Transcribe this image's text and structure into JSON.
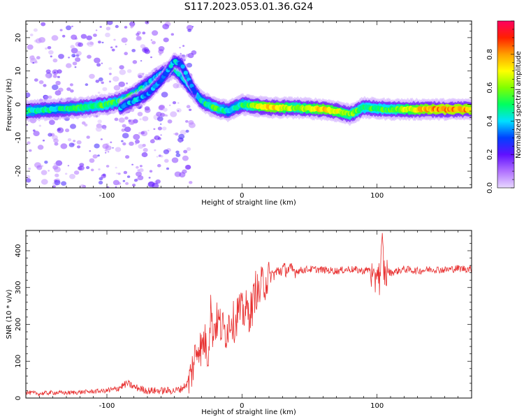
{
  "title": "S117.2023.053.01.36.G24",
  "chart_data": [
    {
      "type": "heatmap",
      "xlabel": "Height of straight line (km)",
      "ylabel": "Frequency (Hz)",
      "xlim": [
        -160,
        170
      ],
      "ylim": [
        -25,
        25
      ],
      "xticks": [
        -100,
        0,
        100
      ],
      "xtick_labels": [
        "-100",
        "0",
        "100"
      ],
      "yticks": [
        -20,
        -10,
        0,
        10,
        20
      ],
      "ytick_labels": [
        "-20",
        "-10",
        "0",
        "10",
        "20"
      ],
      "colorbar": {
        "label": "Normalized spectral amplitude",
        "range": [
          0,
          1
        ],
        "ticks": [
          0,
          0.2,
          0.4,
          0.6,
          0.8
        ],
        "tick_labels": [
          "0.0",
          "0.2",
          "0.4",
          "0.6",
          "0.8"
        ],
        "colors": [
          "#e8d8ff",
          "#b070ff",
          "#6010ff",
          "#0040ff",
          "#00e0ff",
          "#00ff60",
          "#80ff00",
          "#ffff00",
          "#ffa000",
          "#ff2000",
          "#ff0060"
        ]
      },
      "main_track": [
        {
          "x": -160,
          "f": -2,
          "a": 0.45
        },
        {
          "x": -140,
          "f": -1.5,
          "a": 0.4
        },
        {
          "x": -120,
          "f": -1,
          "a": 0.45
        },
        {
          "x": -100,
          "f": 0,
          "a": 0.5
        },
        {
          "x": -90,
          "f": 1,
          "a": 0.45
        },
        {
          "x": -80,
          "f": 3,
          "a": 0.45
        },
        {
          "x": -70,
          "f": 6,
          "a": 0.35
        },
        {
          "x": -60,
          "f": 9,
          "a": 0.35
        },
        {
          "x": -50,
          "f": 11,
          "a": 0.4
        },
        {
          "x": -40,
          "f": 6,
          "a": 0.35
        },
        {
          "x": -30,
          "f": 1,
          "a": 0.4
        },
        {
          "x": -20,
          "f": -1,
          "a": 0.5
        },
        {
          "x": -10,
          "f": -2,
          "a": 0.4
        },
        {
          "x": 0,
          "f": 0,
          "a": 0.45
        },
        {
          "x": 10,
          "f": -0.5,
          "a": 0.6
        },
        {
          "x": 20,
          "f": -1,
          "a": 0.75
        },
        {
          "x": 40,
          "f": -1,
          "a": 0.55
        },
        {
          "x": 60,
          "f": -1.5,
          "a": 0.7
        },
        {
          "x": 70,
          "f": -2,
          "a": 0.65
        },
        {
          "x": 80,
          "f": -3,
          "a": 0.55
        },
        {
          "x": 90,
          "f": -1,
          "a": 0.5
        },
        {
          "x": 110,
          "f": -1.5,
          "a": 0.5
        },
        {
          "x": 130,
          "f": -1.5,
          "a": 0.7
        },
        {
          "x": 150,
          "f": -1.5,
          "a": 0.8
        },
        {
          "x": 170,
          "f": -1.5,
          "a": 0.75
        }
      ],
      "secondary_track": [
        {
          "x": -90,
          "f": -1,
          "a": 0.35
        },
        {
          "x": -80,
          "f": 1,
          "a": 0.35
        },
        {
          "x": -70,
          "f": 3,
          "a": 0.3
        },
        {
          "x": -60,
          "f": 7,
          "a": 0.3
        },
        {
          "x": -50,
          "f": 13,
          "a": 0.35
        },
        {
          "x": -45,
          "f": 12,
          "a": 0.3
        },
        {
          "x": -35,
          "f": 4,
          "a": 0.3
        }
      ]
    },
    {
      "type": "line",
      "xlabel": "Height of straight line (km)",
      "ylabel": "SNR (10 * v/v)",
      "xlim": [
        -160,
        170
      ],
      "ylim": [
        0,
        455
      ],
      "xticks": [
        -100,
        0,
        100
      ],
      "xtick_labels": [
        "-100",
        "0",
        "100"
      ],
      "yticks": [
        0,
        100,
        200,
        300,
        400
      ],
      "ytick_labels": [
        "0",
        "100",
        "200",
        "300",
        "400"
      ],
      "series": [
        {
          "color": "#e83030",
          "x": [
            -160,
            -150,
            -140,
            -130,
            -120,
            -110,
            -100,
            -95,
            -90,
            -85,
            -80,
            -70,
            -60,
            -50,
            -45,
            -40,
            -38,
            -35,
            -32,
            -30,
            -28,
            -25,
            -23,
            -22,
            -20,
            -18,
            -15,
            -12,
            -10,
            -8,
            -5,
            -3,
            0,
            3,
            5,
            8,
            10,
            12,
            15,
            18,
            20,
            25,
            30,
            40,
            50,
            60,
            70,
            80,
            90,
            95,
            98,
            100,
            102,
            104,
            105,
            106,
            108,
            110,
            120,
            130,
            140,
            150,
            160,
            170
          ],
          "y": [
            15,
            12,
            15,
            14,
            16,
            18,
            20,
            22,
            30,
            40,
            30,
            20,
            20,
            20,
            25,
            40,
            60,
            110,
            150,
            130,
            160,
            120,
            260,
            180,
            200,
            210,
            190,
            180,
            200,
            220,
            200,
            240,
            230,
            240,
            230,
            250,
            300,
            280,
            310,
            320,
            330,
            340,
            350,
            345,
            350,
            348,
            345,
            350,
            345,
            350,
            300,
            360,
            320,
            420,
            350,
            330,
            345,
            340,
            350,
            345,
            350,
            348,
            352,
            350
          ]
        }
      ]
    }
  ]
}
